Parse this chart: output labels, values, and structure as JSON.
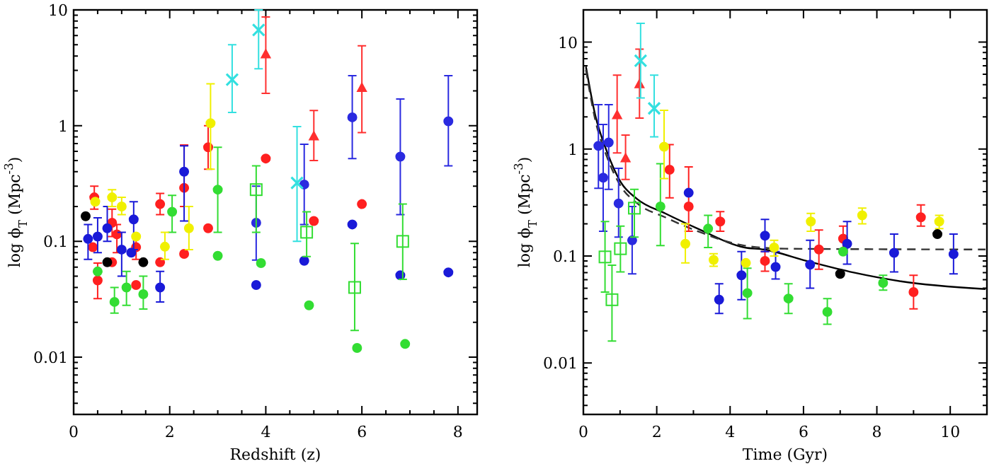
{
  "chart_data": [
    {
      "type": "scatter",
      "xlabel": "Redshift (z)",
      "ylabel": "log ϕ$_{T}$ (Mpc$^{-3}$)",
      "log": "y",
      "xlim": [
        0,
        8.4
      ],
      "xticks": [
        0,
        {
          "value": 0.5,
          "label": null
        },
        {
          "value": 1,
          "label": null
        },
        {
          "value": 1.5,
          "label": null
        },
        2,
        {
          "value": 2.5,
          "label": null
        },
        {
          "value": 3,
          "label": null
        },
        {
          "value": 3.5,
          "label": null
        },
        4,
        {
          "value": 4.5,
          "label": null
        },
        {
          "value": 5,
          "label": null
        },
        {
          "value": 5.5,
          "label": null
        },
        6,
        {
          "value": 6.5,
          "label": null
        },
        {
          "value": 7,
          "label": null
        },
        {
          "value": 7.5,
          "label": null
        },
        8
      ],
      "ylim": [
        0.0032,
        10
      ],
      "yticks": [
        {
          "value": 0.004,
          "label": null
        },
        {
          "value": 0.005,
          "label": null
        },
        {
          "value": 0.006,
          "label": null
        },
        {
          "value": 0.007,
          "label": null
        },
        {
          "value": 0.008,
          "label": null
        },
        {
          "value": 0.009,
          "label": null
        },
        0.01,
        {
          "value": 0.02,
          "label": null
        },
        {
          "value": 0.03,
          "label": null
        },
        {
          "value": 0.04,
          "label": null
        },
        {
          "value": 0.05,
          "label": null
        },
        {
          "value": 0.06,
          "label": null
        },
        {
          "value": 0.07,
          "label": null
        },
        {
          "value": 0.08,
          "label": null
        },
        {
          "value": 0.09,
          "label": null
        },
        0.1,
        {
          "value": 0.2,
          "label": null
        },
        {
          "value": 0.3,
          "label": null
        },
        {
          "value": 0.4,
          "label": null
        },
        {
          "value": 0.5,
          "label": null
        },
        {
          "value": 0.6,
          "label": null
        },
        {
          "value": 0.7,
          "label": null
        },
        {
          "value": 0.8,
          "label": null
        },
        {
          "value": 0.9,
          "label": null
        },
        1,
        {
          "value": 2,
          "label": null
        },
        {
          "value": 3,
          "label": null
        },
        {
          "value": 4,
          "label": null
        },
        {
          "value": 5,
          "label": null
        },
        {
          "value": 6,
          "label": null
        },
        {
          "value": 7,
          "label": null
        },
        {
          "value": 8,
          "label": null
        },
        {
          "value": 9,
          "label": null
        },
        10
      ],
      "series": [
        {
          "color": "#ff2020",
          "marker": "circle",
          "x": [
            0.43,
            0.8,
            1.3,
            1.8,
            2.3,
            2.8
          ],
          "values": [
            0.24,
            0.145,
            0.089,
            0.21,
            0.29,
            0.65
          ],
          "errors": [
            [
              0.19,
              0.3
            ],
            [
              0.11,
              0.19
            ],
            [
              0.07,
              0.11
            ],
            [
              0.17,
              0.26
            ],
            [
              0.2,
              0.68
            ],
            [
              0.42,
              1.0
            ]
          ]
        },
        {
          "color": "#ff2020",
          "marker": "circle",
          "x": [
            0.4,
            0.5,
            0.8,
            0.9,
            1.3,
            1.8,
            2.3,
            2.8,
            4.0,
            5.0,
            6.0
          ],
          "values": [
            0.089,
            0.046,
            0.066,
            0.115,
            0.042,
            0.066,
            0.078,
            0.13,
            0.52,
            0.15,
            0.21
          ],
          "errors": [
            null,
            [
              0.032,
              0.065
            ],
            null,
            [
              0.08,
              0.14
            ],
            null,
            null,
            null,
            null,
            null,
            null,
            null
          ]
        },
        {
          "color": "#ff3030",
          "marker": "triangle",
          "x": [
            4.0,
            5.0,
            6.0
          ],
          "values": [
            4.1,
            0.8,
            2.1
          ],
          "errors": [
            [
              1.9,
              8.7
            ],
            [
              0.5,
              1.35
            ],
            [
              0.87,
              4.9
            ]
          ]
        },
        {
          "color": "#2a2ae0",
          "marker": "circle",
          "x": [
            3.8,
            4.8,
            5.8,
            6.8,
            7.8
          ],
          "values": [
            0.145,
            0.31,
            1.18,
            0.54,
            1.09
          ],
          "errors": [
            [
              0.069,
              0.3
            ],
            [
              0.14,
              0.69
            ],
            [
              0.52,
              2.7
            ],
            [
              0.17,
              1.7
            ],
            [
              0.45,
              2.7
            ]
          ]
        },
        {
          "color": "#1a1ad8",
          "marker": "circle",
          "x": [
            0.3,
            0.5,
            0.7,
            1.0,
            1.2,
            1.25,
            1.8,
            2.3,
            3.8,
            4.8,
            5.8,
            6.8,
            7.8
          ],
          "values": [
            0.105,
            0.11,
            0.13,
            0.085,
            0.08,
            0.155,
            0.04,
            0.4,
            0.042,
            0.068,
            0.14,
            0.051,
            0.054
          ],
          "errors": [
            [
              0.07,
              0.14
            ],
            [
              0.08,
              0.16
            ],
            [
              0.1,
              0.2
            ],
            [
              0.05,
              0.12
            ],
            null,
            [
              0.085,
              0.22
            ],
            [
              0.03,
              0.055
            ],
            [
              0.15,
              0.67
            ],
            null,
            null,
            null,
            null,
            null
          ]
        },
        {
          "color": "#33dd33",
          "marker": "square",
          "x": [
            3.8,
            4.85,
            5.85,
            6.85
          ],
          "values": [
            0.28,
            0.12,
            0.04,
            0.1
          ],
          "errors": [
            [
              0.12,
              0.45
            ],
            [
              0.074,
              0.18
            ],
            [
              0.017,
              0.096
            ],
            [
              0.047,
              0.21
            ]
          ]
        },
        {
          "color": "#33dd33",
          "marker": "circle",
          "x": [
            0.5,
            0.85,
            1.1,
            1.45,
            2.05,
            3.0,
            3.0,
            3.9,
            4.9,
            5.9,
            6.9
          ],
          "values": [
            0.055,
            0.03,
            0.04,
            0.035,
            0.18,
            0.28,
            0.075,
            0.065,
            0.028,
            0.012,
            0.013
          ],
          "errors": [
            null,
            [
              0.024,
              0.04
            ],
            [
              0.028,
              0.055
            ],
            [
              0.026,
              0.05
            ],
            [
              0.12,
              0.25
            ],
            [
              0.12,
              0.65
            ],
            null,
            null,
            null,
            null,
            null
          ]
        },
        {
          "color": "#f0f000",
          "marker": "circle",
          "x": [
            0.45,
            0.8,
            1.0,
            1.3,
            1.9,
            2.4,
            2.85
          ],
          "values": [
            0.22,
            0.24,
            0.2,
            0.11,
            0.09,
            0.13,
            1.05
          ],
          "errors": [
            null,
            [
              0.2,
              0.28
            ],
            [
              0.17,
              0.24
            ],
            null,
            [
              0.07,
              0.12
            ],
            [
              0.085,
              0.2
            ],
            [
              0.42,
              2.3
            ]
          ]
        },
        {
          "color": "#33e0e0",
          "marker": "cross",
          "x": [
            3.3,
            3.85,
            4.65
          ],
          "values": [
            2.5,
            6.7,
            0.32
          ],
          "errors": [
            [
              1.3,
              5
            ],
            [
              3.1,
              10
            ],
            [
              0.1,
              0.98
            ]
          ]
        },
        {
          "color": "#000000",
          "marker": "circle",
          "x": [
            0.25,
            0.7,
            1.45
          ],
          "values": [
            0.165,
            0.066,
            0.066
          ]
        }
      ]
    },
    {
      "type": "scatter",
      "xlabel": "Time (Gyr)",
      "ylabel": "log ϕ$_{T}$ (Mpc$^{-3}$)",
      "log": "y",
      "xlim": [
        0,
        11
      ],
      "xticks": [
        0,
        {
          "value": 1,
          "label": null
        },
        2,
        {
          "value": 3,
          "label": null
        },
        4,
        {
          "value": 5,
          "label": null
        },
        6,
        {
          "value": 7,
          "label": null
        },
        8,
        {
          "value": 9,
          "label": null
        },
        10
      ],
      "ylim": [
        0.0033,
        20
      ],
      "yticks": [
        {
          "value": 0.004,
          "label": null
        },
        {
          "value": 0.005,
          "label": null
        },
        {
          "value": 0.006,
          "label": null
        },
        {
          "value": 0.007,
          "label": null
        },
        {
          "value": 0.008,
          "label": null
        },
        {
          "value": 0.009,
          "label": null
        },
        0.01,
        {
          "value": 0.02,
          "label": null
        },
        {
          "value": 0.03,
          "label": null
        },
        {
          "value": 0.04,
          "label": null
        },
        {
          "value": 0.05,
          "label": null
        },
        {
          "value": 0.06,
          "label": null
        },
        {
          "value": 0.07,
          "label": null
        },
        {
          "value": 0.08,
          "label": null
        },
        {
          "value": 0.09,
          "label": null
        },
        0.1,
        {
          "value": 0.2,
          "label": null
        },
        {
          "value": 0.3,
          "label": null
        },
        {
          "value": 0.4,
          "label": null
        },
        {
          "value": 0.5,
          "label": null
        },
        {
          "value": 0.6,
          "label": null
        },
        {
          "value": 0.7,
          "label": null
        },
        {
          "value": 0.8,
          "label": null
        },
        {
          "value": 0.9,
          "label": null
        },
        1,
        {
          "value": 2,
          "label": null
        },
        {
          "value": 3,
          "label": null
        },
        {
          "value": 4,
          "label": null
        },
        {
          "value": 5,
          "label": null
        },
        {
          "value": 6,
          "label": null
        },
        {
          "value": 7,
          "label": null
        },
        {
          "value": 8,
          "label": null
        },
        {
          "value": 9,
          "label": null
        },
        10,
        {
          "value": 20,
          "label": null
        }
      ],
      "series": [
        {
          "type": "line",
          "color": "#000000",
          "line_style": "solid",
          "x": [
            0.07,
            0.32,
            0.64,
            1.02,
            1.47,
            2.23,
            3.12,
            4.4,
            4.92,
            6.08,
            7.37,
            8.65,
            10.96
          ],
          "values": [
            5.9,
            2.1,
            0.95,
            0.49,
            0.34,
            0.25,
            0.18,
            0.12,
            0.115,
            0.09,
            0.07,
            0.058,
            0.049
          ]
        },
        {
          "type": "line",
          "color": "#333333",
          "line_style": "dashed",
          "x": [
            0.07,
            0.32,
            0.64,
            1.02,
            1.47,
            2.23,
            3.12,
            4.4,
            5.5,
            10.96
          ],
          "values": [
            5.5,
            1.9,
            0.85,
            0.45,
            0.31,
            0.23,
            0.17,
            0.125,
            0.117,
            0.115
          ]
        },
        {
          "color": "#ff2020",
          "marker": "circle",
          "x": [
            2.35,
            2.87,
            3.73,
            4.95,
            7.08,
            9.2
          ],
          "values": [
            0.64,
            0.29,
            0.21,
            0.09,
            0.145,
            0.23
          ],
          "errors": [
            [
              0.35,
              1.1
            ],
            [
              0.17,
              0.68
            ],
            [
              0.17,
              0.26
            ],
            [
              0.072,
              0.11
            ],
            [
              0.11,
              0.19
            ],
            [
              0.19,
              0.3
            ]
          ]
        },
        {
          "color": "#ff2020",
          "marker": "circle",
          "x": [
            6.42,
            9.0
          ],
          "values": [
            0.115,
            0.046
          ],
          "errors": [
            [
              0.075,
              0.175
            ],
            [
              0.032,
              0.066
            ]
          ]
        },
        {
          "color": "#ff3030",
          "marker": "triangle",
          "x": [
            0.92,
            1.15,
            1.53
          ],
          "values": [
            2.05,
            0.81,
            4.0
          ],
          "errors": [
            [
              0.92,
              4.9
            ],
            [
              0.52,
              1.35
            ],
            [
              1.95,
              8.6
            ]
          ]
        },
        {
          "color": "#2a2ae0",
          "marker": "circle",
          "x": [
            0.41,
            0.54,
            0.69,
            0.96,
            1.33
          ],
          "values": [
            1.07,
            0.54,
            1.15,
            0.31,
            0.14
          ],
          "errors": [
            [
              0.43,
              2.6
            ],
            [
              0.17,
              1.7
            ],
            [
              0.42,
              2.6
            ],
            [
              0.15,
              0.66
            ],
            [
              0.068,
              0.29
            ]
          ]
        },
        {
          "color": "#1a1ad8",
          "marker": "circle",
          "x": [
            2.87,
            3.7,
            4.31,
            4.95,
            5.24,
            6.18,
            7.19,
            8.47,
            10.09
          ],
          "values": [
            0.39,
            0.039,
            0.066,
            0.155,
            0.079,
            0.083,
            0.13,
            0.107,
            0.104
          ],
          "errors": [
            null,
            [
              0.029,
              0.055
            ],
            [
              0.039,
              0.11
            ],
            [
              0.11,
              0.22
            ],
            [
              0.061,
              0.11
            ],
            [
              0.05,
              0.14
            ],
            [
              0.084,
              0.21
            ],
            [
              0.071,
              0.16
            ],
            [
              0.068,
              0.16
            ]
          ]
        },
        {
          "color": "#33dd33",
          "marker": "square",
          "x": [
            0.59,
            0.78,
            1.01,
            1.39
          ],
          "values": [
            0.098,
            0.039,
            0.117,
            0.28
          ],
          "errors": [
            [
              0.046,
              0.21
            ],
            [
              0.016,
              0.082
            ],
            [
              0.071,
              0.19
            ],
            [
              0.15,
              0.42
            ]
          ]
        },
        {
          "color": "#33dd33",
          "marker": "circle",
          "x": [
            2.1,
            3.4,
            4.47,
            5.59,
            6.65,
            7.08,
            8.17
          ],
          "values": [
            0.29,
            0.18,
            0.045,
            0.04,
            0.03,
            0.11,
            0.056
          ],
          "errors": [
            [
              0.125,
              0.73
            ],
            [
              0.12,
              0.24
            ],
            [
              0.026,
              0.077
            ],
            [
              0.029,
              0.055
            ],
            [
              0.023,
              0.04
            ],
            null,
            [
              0.048,
              0.066
            ]
          ]
        },
        {
          "color": "#f0f000",
          "marker": "circle",
          "x": [
            2.2,
            2.78,
            3.55,
            4.43,
            5.2,
            6.2,
            7.6,
            9.7
          ],
          "values": [
            1.05,
            0.13,
            0.092,
            0.086,
            0.12,
            0.21,
            0.24,
            0.21
          ],
          "errors": [
            [
              0.53,
              2.3
            ],
            [
              0.086,
              0.2
            ],
            [
              0.08,
              0.105
            ],
            null,
            [
              0.1,
              0.14
            ],
            [
              0.17,
              0.25
            ],
            [
              0.2,
              0.28
            ],
            [
              0.18,
              0.24
            ]
          ]
        },
        {
          "color": "#33e0e0",
          "marker": "cross",
          "x": [
            1.56,
            1.93
          ],
          "values": [
            6.7,
            2.4
          ],
          "errors": [
            [
              3.0,
              15
            ],
            [
              1.3,
              4.9
            ]
          ]
        },
        {
          "color": "#000000",
          "marker": "circle",
          "x": [
            7.0,
            9.65
          ],
          "values": [
            0.068,
            0.16
          ]
        }
      ]
    }
  ]
}
